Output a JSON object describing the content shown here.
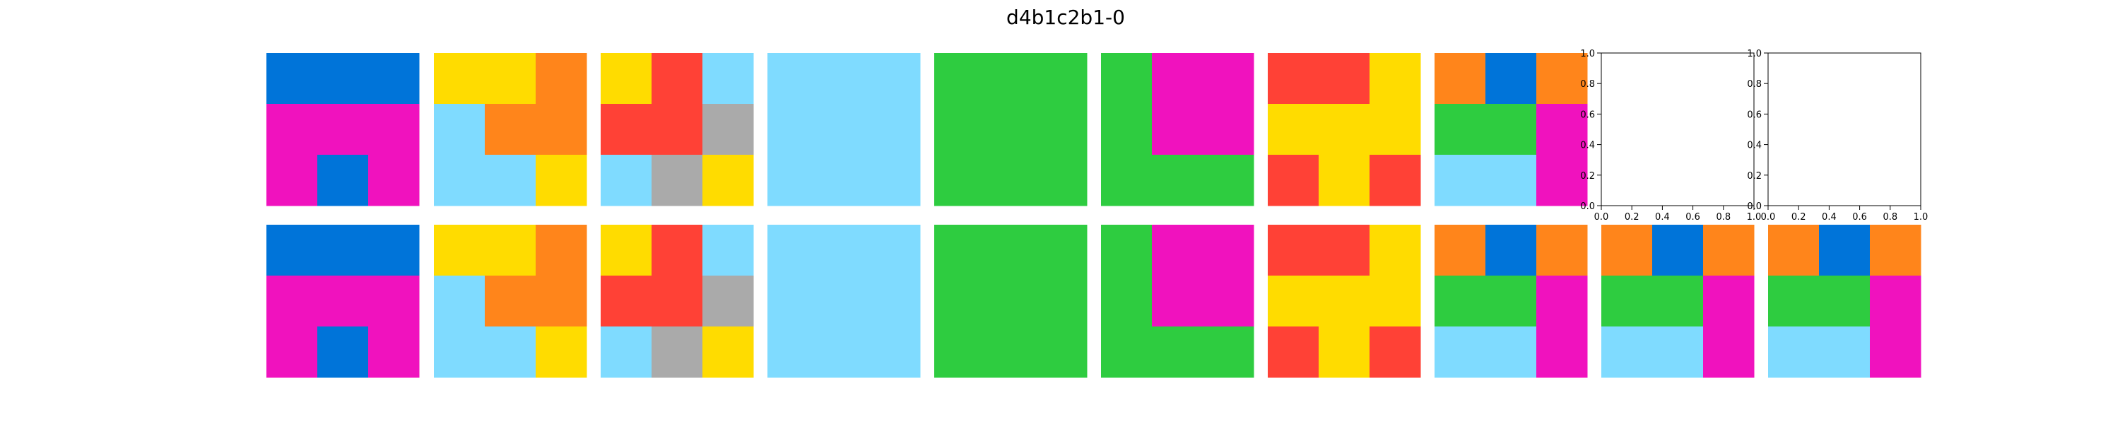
{
  "title": "d4b1c2b1-0",
  "colors": {
    "B": "#0074d9",
    "M": "#f012be",
    "Y": "#ffdc00",
    "O": "#ff851b",
    "L": "#7fdbff",
    "R": "#ff4136",
    "G": "#aaaaaa",
    "N": "#2ecc40"
  },
  "empty_axis_ticks": [
    "0.0",
    "0.2",
    "0.4",
    "0.6",
    "0.8",
    "1.0"
  ],
  "rows": [
    {
      "name": "top-row",
      "panels": [
        {
          "name": "pair-1-input",
          "grid": [
            [
              "B",
              "B",
              "B"
            ],
            [
              "M",
              "M",
              "M"
            ],
            [
              "M",
              "B",
              "M"
            ]
          ]
        },
        {
          "name": "pair-2-input",
          "grid": [
            [
              "Y",
              "Y",
              "O"
            ],
            [
              "L",
              "O",
              "O"
            ],
            [
              "L",
              "L",
              "Y"
            ]
          ]
        },
        {
          "name": "pair-3-input",
          "grid": [
            [
              "Y",
              "R",
              "L"
            ],
            [
              "R",
              "R",
              "G"
            ],
            [
              "L",
              "G",
              "Y"
            ]
          ]
        },
        {
          "name": "pair-4-input",
          "grid": [
            [
              "L",
              "L",
              "L"
            ],
            [
              "L",
              "L",
              "L"
            ],
            [
              "L",
              "L",
              "L"
            ]
          ]
        },
        {
          "name": "pair-5-input",
          "grid": [
            [
              "N",
              "N",
              "N"
            ],
            [
              "N",
              "N",
              "N"
            ],
            [
              "N",
              "N",
              "N"
            ]
          ]
        },
        {
          "name": "pair-6-input",
          "grid": [
            [
              "N",
              "M",
              "M"
            ],
            [
              "N",
              "M",
              "M"
            ],
            [
              "N",
              "N",
              "N"
            ]
          ]
        },
        {
          "name": "pair-7-input",
          "grid": [
            [
              "R",
              "R",
              "Y"
            ],
            [
              "Y",
              "Y",
              "Y"
            ],
            [
              "R",
              "Y",
              "R"
            ]
          ]
        },
        {
          "name": "test-input",
          "grid": [
            [
              "O",
              "B",
              "O"
            ],
            [
              "N",
              "N",
              "M"
            ],
            [
              "L",
              "L",
              "M"
            ]
          ]
        },
        {
          "name": "empty-axes-1",
          "empty": true
        },
        {
          "name": "empty-axes-2",
          "empty": true
        }
      ]
    },
    {
      "name": "bottom-row",
      "panels": [
        {
          "name": "pair-1-output",
          "grid": [
            [
              "B",
              "B",
              "B"
            ],
            [
              "M",
              "M",
              "M"
            ],
            [
              "M",
              "B",
              "M"
            ]
          ]
        },
        {
          "name": "pair-2-output",
          "grid": [
            [
              "Y",
              "Y",
              "O"
            ],
            [
              "L",
              "O",
              "O"
            ],
            [
              "L",
              "L",
              "Y"
            ]
          ]
        },
        {
          "name": "pair-3-output",
          "grid": [
            [
              "Y",
              "R",
              "L"
            ],
            [
              "R",
              "R",
              "G"
            ],
            [
              "L",
              "G",
              "Y"
            ]
          ]
        },
        {
          "name": "pair-4-output",
          "grid": [
            [
              "L",
              "L",
              "L"
            ],
            [
              "L",
              "L",
              "L"
            ],
            [
              "L",
              "L",
              "L"
            ]
          ]
        },
        {
          "name": "pair-5-output",
          "grid": [
            [
              "N",
              "N",
              "N"
            ],
            [
              "N",
              "N",
              "N"
            ],
            [
              "N",
              "N",
              "N"
            ]
          ]
        },
        {
          "name": "pair-6-output",
          "grid": [
            [
              "N",
              "M",
              "M"
            ],
            [
              "N",
              "M",
              "M"
            ],
            [
              "N",
              "N",
              "N"
            ]
          ]
        },
        {
          "name": "pair-7-output",
          "grid": [
            [
              "R",
              "R",
              "Y"
            ],
            [
              "Y",
              "Y",
              "Y"
            ],
            [
              "R",
              "Y",
              "R"
            ]
          ]
        },
        {
          "name": "test-output",
          "grid": [
            [
              "O",
              "B",
              "O"
            ],
            [
              "N",
              "N",
              "M"
            ],
            [
              "L",
              "L",
              "M"
            ]
          ]
        },
        {
          "name": "prediction-1",
          "grid": [
            [
              "O",
              "B",
              "O"
            ],
            [
              "N",
              "N",
              "M"
            ],
            [
              "L",
              "L",
              "M"
            ]
          ]
        },
        {
          "name": "prediction-2",
          "grid": [
            [
              "O",
              "B",
              "O"
            ],
            [
              "N",
              "N",
              "M"
            ],
            [
              "L",
              "L",
              "M"
            ]
          ]
        }
      ]
    }
  ]
}
